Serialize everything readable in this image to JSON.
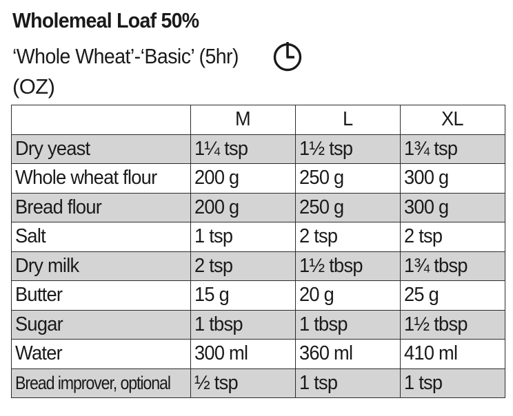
{
  "header": {
    "title": "Wholemeal Loaf 50%",
    "subtitle": "‘Whole Wheat’-‘Basic’ (5hr)",
    "timer_icon": "timer-icon",
    "unit": "(OZ)"
  },
  "table": {
    "columns": [
      "",
      "M",
      "L",
      "XL"
    ],
    "rows": [
      {
        "ingredient": "Dry yeast",
        "m": "1¼ tsp",
        "l": "1½ tsp",
        "xl": "1¾ tsp"
      },
      {
        "ingredient": "Whole wheat flour",
        "m": "200 g",
        "l": "250 g",
        "xl": "300 g"
      },
      {
        "ingredient": "Bread flour",
        "m": "200 g",
        "l": "250 g",
        "xl": "300 g"
      },
      {
        "ingredient": "Salt",
        "m": "1 tsp",
        "l": "2 tsp",
        "xl": "2 tsp"
      },
      {
        "ingredient": "Dry milk",
        "m": "2 tsp",
        "l": "1½ tbsp",
        "xl": "1¾ tbsp"
      },
      {
        "ingredient": "Butter",
        "m": "15 g",
        "l": "20 g",
        "xl": "25 g"
      },
      {
        "ingredient": "Sugar",
        "m": "1 tbsp",
        "l": "1 tbsp",
        "xl": "1½ tbsp"
      },
      {
        "ingredient": "Water",
        "m": "300 ml",
        "l": "360 ml",
        "xl": "410 ml"
      },
      {
        "ingredient": "Bread improver, optional",
        "m": "½ tsp",
        "l": "1 tsp",
        "xl": "1 tsp"
      }
    ]
  }
}
